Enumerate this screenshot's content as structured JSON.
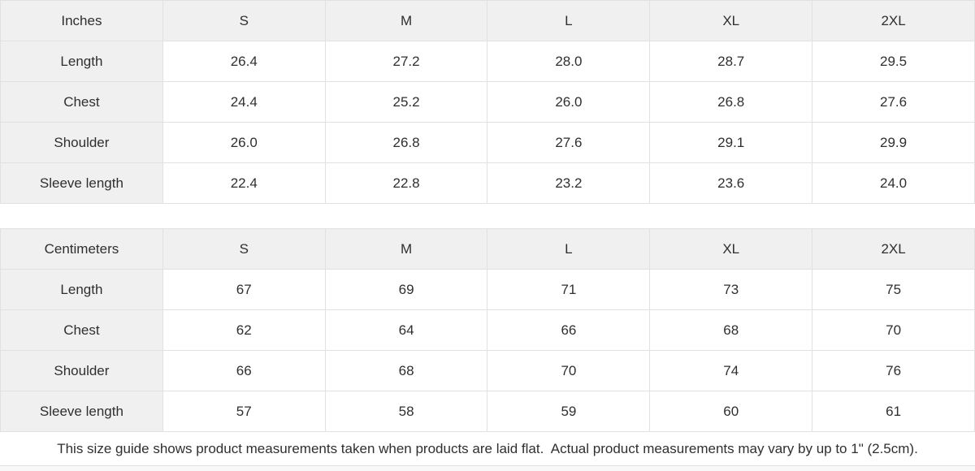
{
  "colors": {
    "header_bg": "#f0f0f0",
    "label_column_bg": "#f0f0f0",
    "border": "#e1e1e1",
    "text": "#2f2f2f",
    "cell_bg": "#ffffff"
  },
  "chart_data": [
    {
      "type": "table",
      "title": "Inches",
      "columns": [
        "Inches",
        "S",
        "M",
        "L",
        "XL",
        "2XL"
      ],
      "rows": [
        [
          "Length",
          "26.4",
          "27.2",
          "28.0",
          "28.7",
          "29.5"
        ],
        [
          "Chest",
          "24.4",
          "25.2",
          "26.0",
          "26.8",
          "27.6"
        ],
        [
          "Shoulder",
          "26.0",
          "26.8",
          "27.6",
          "29.1",
          "29.9"
        ],
        [
          "Sleeve length",
          "22.4",
          "22.8",
          "23.2",
          "23.6",
          "24.0"
        ]
      ]
    },
    {
      "type": "table",
      "title": "Centimeters",
      "columns": [
        "Centimeters",
        "S",
        "M",
        "L",
        "XL",
        "2XL"
      ],
      "rows": [
        [
          "Length",
          "67",
          "69",
          "71",
          "73",
          "75"
        ],
        [
          "Chest",
          "62",
          "64",
          "66",
          "68",
          "70"
        ],
        [
          "Shoulder",
          "66",
          "68",
          "70",
          "74",
          "76"
        ],
        [
          "Sleeve length",
          "57",
          "58",
          "59",
          "60",
          "61"
        ]
      ]
    }
  ],
  "footer": {
    "note": "This size guide shows product measurements taken when products are laid flat.  Actual product measurements may vary by up to 1\" (2.5cm)."
  }
}
